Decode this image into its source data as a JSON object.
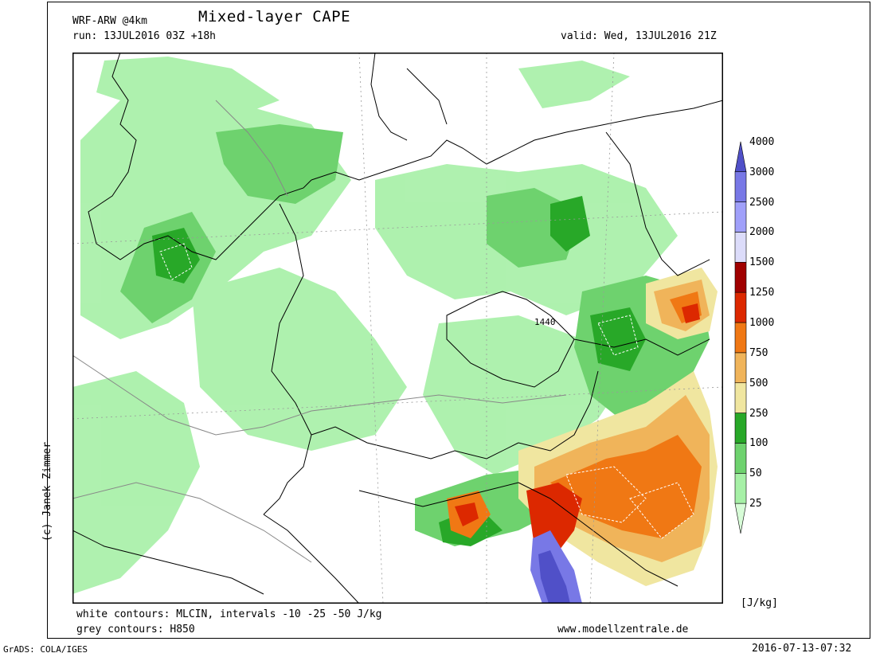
{
  "header": {
    "model": "WRF-ARW @4km",
    "title": "Mixed-layer CAPE",
    "run": "run: 13JUL2016 03Z +18h",
    "valid": "valid: Wed, 13JUL2016 21Z"
  },
  "map": {
    "annotation_value": "1440"
  },
  "legend": {
    "unit": "[J/kg]",
    "levels": [
      "25",
      "50",
      "100",
      "250",
      "500",
      "750",
      "1000",
      "1250",
      "1500",
      "2000",
      "2500",
      "3000",
      "4000"
    ],
    "colors": [
      "#d7fcd7",
      "#a6f0a6",
      "#6ed26e",
      "#28a828",
      "#f0e6a0",
      "#f0b45a",
      "#f07814",
      "#dc2800",
      "#a00000",
      "#dcdcfa",
      "#a0a0fa",
      "#7878e6",
      "#5050c8"
    ]
  },
  "footer": {
    "white_contours": "white contours: MLCIN, intervals -10 -25 -50 J/kg",
    "grey_contours": "grey contours: H850",
    "website": "www.modellzentrale.de",
    "credit": "(c) Janek Zimmer",
    "grads": "GrADS: COLA/IGES",
    "timestamp": "2016-07-13-07:32"
  }
}
